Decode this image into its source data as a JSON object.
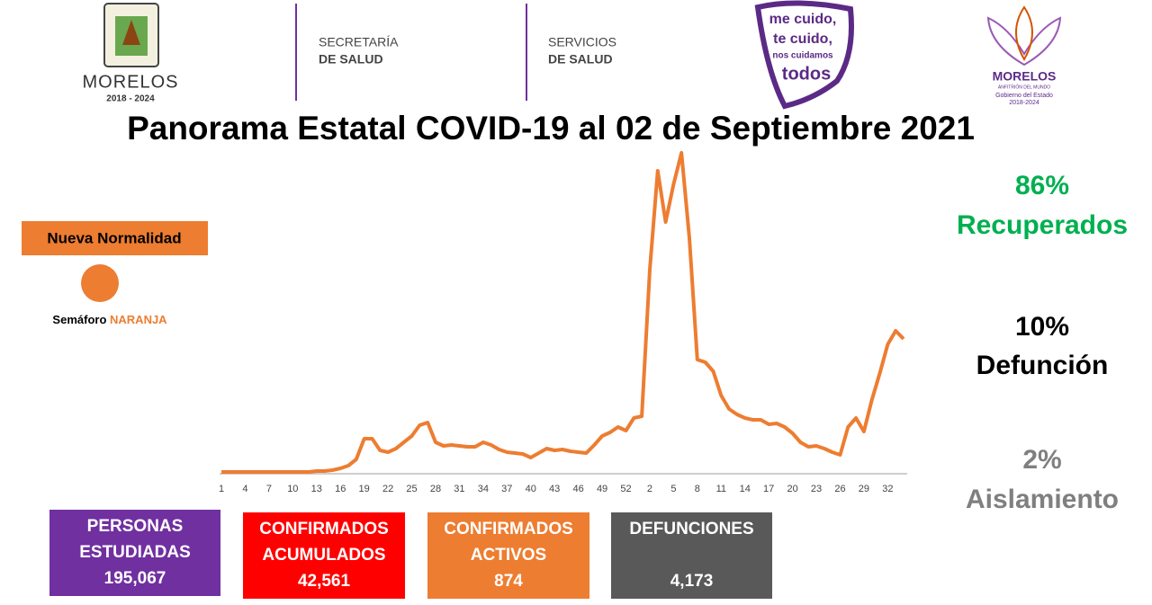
{
  "header": {
    "morelos": "MORELOS",
    "morelos_years": "2018 - 2024",
    "secretaria": [
      "SECRETARÍA",
      "DE SALUD"
    ],
    "servicios": [
      "SERVICIOS",
      "DE SALUD"
    ],
    "slogan": [
      "me cuido,",
      "te cuido,",
      "nos cuidamos",
      "todos"
    ],
    "gobierno": [
      "MORELOS",
      "ANFITRIÓN DEL MUNDO",
      "Gobierno del Estado",
      "2018-2024"
    ]
  },
  "title": "Panorama Estatal COVID-19 al 02 de Septiembre 2021",
  "semaforo": {
    "badge": "Nueva Normalidad",
    "label": "Semáforo",
    "color_name": "NARANJA"
  },
  "stats": [
    {
      "percent": "86%",
      "label": "Recuperados",
      "color": "#00b050"
    },
    {
      "percent": "10%",
      "label": "Defunción",
      "color": "#000000"
    },
    {
      "percent": "2%",
      "label": "Aislamiento",
      "color": "#7f7f7f"
    }
  ],
  "boxes": [
    {
      "label": [
        "PERSONAS",
        "ESTUDIADAS"
      ],
      "value": "195,067",
      "color": "#7030a0"
    },
    {
      "label": [
        "CONFIRMADOS",
        "ACUMULADOS"
      ],
      "value": "42,561",
      "color": "#ff0000"
    },
    {
      "label": [
        "CONFIRMADOS",
        "ACTIVOS"
      ],
      "value": "874",
      "color": "#ed7d31"
    },
    {
      "label": [
        "DEFUNCIONES"
      ],
      "value": "4,173",
      "color": "#595959"
    }
  ],
  "chart_data": {
    "type": "line",
    "color": "#ed7d31",
    "categories": [
      "1",
      null,
      null,
      "4",
      null,
      null,
      "7",
      null,
      null,
      "10",
      null,
      null,
      "13",
      null,
      null,
      "16",
      null,
      null,
      "19",
      null,
      null,
      "22",
      null,
      null,
      "25",
      null,
      null,
      "28",
      null,
      null,
      "31",
      null,
      null,
      "34",
      null,
      null,
      "37",
      null,
      null,
      "40",
      null,
      null,
      "43",
      null,
      null,
      "46",
      null,
      null,
      "49",
      null,
      null,
      "52",
      null,
      null,
      "2",
      null,
      null,
      "5",
      null,
      null,
      "8",
      null,
      null,
      "11",
      null,
      null,
      "14",
      null,
      null,
      "17",
      null,
      null,
      "20",
      null,
      null,
      "23",
      null,
      null,
      "26",
      null,
      null,
      "29",
      null,
      null,
      "32",
      null,
      null
    ],
    "values": [
      0,
      0,
      0,
      0,
      0,
      0,
      0,
      0,
      0,
      0,
      0,
      0,
      1,
      1,
      2,
      4,
      7,
      14,
      37,
      37,
      24,
      22,
      26,
      33,
      40,
      52,
      55,
      33,
      29,
      30,
      29,
      28,
      28,
      33,
      30,
      25,
      22,
      21,
      20,
      16,
      21,
      26,
      24,
      25,
      23,
      22,
      21,
      30,
      40,
      44,
      50,
      46,
      60,
      62,
      225,
      335,
      278,
      320,
      355,
      260,
      125,
      122,
      112,
      85,
      70,
      64,
      60,
      58,
      58,
      53,
      54,
      50,
      43,
      33,
      28,
      29,
      26,
      22,
      19,
      50,
      60,
      45,
      80,
      110,
      142,
      157,
      148
    ]
  }
}
